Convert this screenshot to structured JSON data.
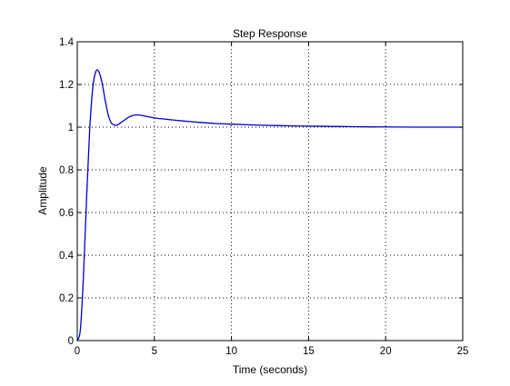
{
  "chart_data": {
    "type": "line",
    "title": "Step Response",
    "xlabel": "Time (seconds)",
    "ylabel": "Amplitude",
    "xlim": [
      0,
      25
    ],
    "ylim": [
      0,
      1.4
    ],
    "xticks": [
      0,
      5,
      10,
      15,
      20,
      25
    ],
    "yticks": [
      0,
      0.2,
      0.4,
      0.6,
      0.8,
      1,
      1.2,
      1.4
    ],
    "xtick_labels": [
      "0",
      "5",
      "10",
      "15",
      "20",
      "25"
    ],
    "ytick_labels": [
      "0",
      "0.2",
      "0.4",
      "0.6",
      "0.8",
      "1",
      "1.2",
      "1.4"
    ],
    "grid": true,
    "series": [
      {
        "color": "#0000cc",
        "x": [
          0,
          0.2,
          0.4,
          0.6,
          0.8,
          1.0,
          1.2,
          1.4,
          1.6,
          1.8,
          2.0,
          2.2,
          2.4,
          2.6,
          2.8,
          3.0,
          3.3,
          3.6,
          4.0,
          4.5,
          5.0,
          6.0,
          7.0,
          8.0,
          9.0,
          10.0,
          12.0,
          14.0,
          16.0,
          18.0,
          20.0,
          22.0,
          25.0
        ],
        "y": [
          0,
          0.05,
          0.3,
          0.66,
          0.98,
          1.18,
          1.26,
          1.26,
          1.21,
          1.13,
          1.06,
          1.02,
          1.01,
          1.01,
          1.02,
          1.03,
          1.045,
          1.055,
          1.057,
          1.05,
          1.043,
          1.035,
          1.028,
          1.022,
          1.017,
          1.014,
          1.009,
          1.006,
          1.004,
          1.002,
          1.001,
          1.0,
          1.0
        ]
      }
    ]
  }
}
